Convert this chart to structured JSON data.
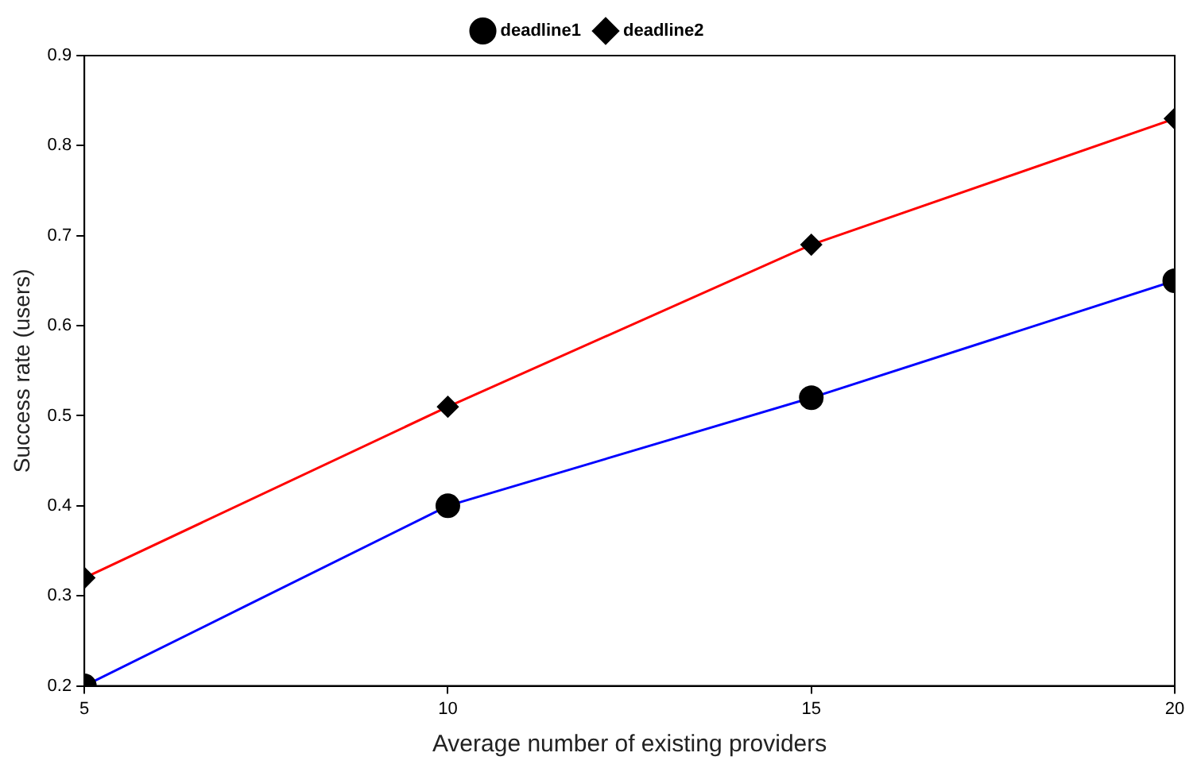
{
  "chart_data": {
    "type": "line",
    "xlabel": "Average number of existing providers",
    "ylabel": "Success rate (users)",
    "x": [
      5,
      10,
      15,
      20
    ],
    "series": [
      {
        "name": "deadline1",
        "color": "#0000ff",
        "marker": "circle",
        "values": [
          0.2,
          0.4,
          0.52,
          0.65
        ]
      },
      {
        "name": "deadline2",
        "color": "#ff0000",
        "marker": "diamond",
        "values": [
          0.32,
          0.51,
          0.69,
          0.83
        ]
      }
    ],
    "xlim": [
      5,
      20
    ],
    "xticks": [
      5,
      10,
      15,
      20
    ],
    "ylim": [
      0.2,
      0.9
    ],
    "yticks": [
      0.2,
      0.3,
      0.4,
      0.5,
      0.6,
      0.7,
      0.8,
      0.9
    ],
    "grid": false,
    "legend": "top"
  }
}
